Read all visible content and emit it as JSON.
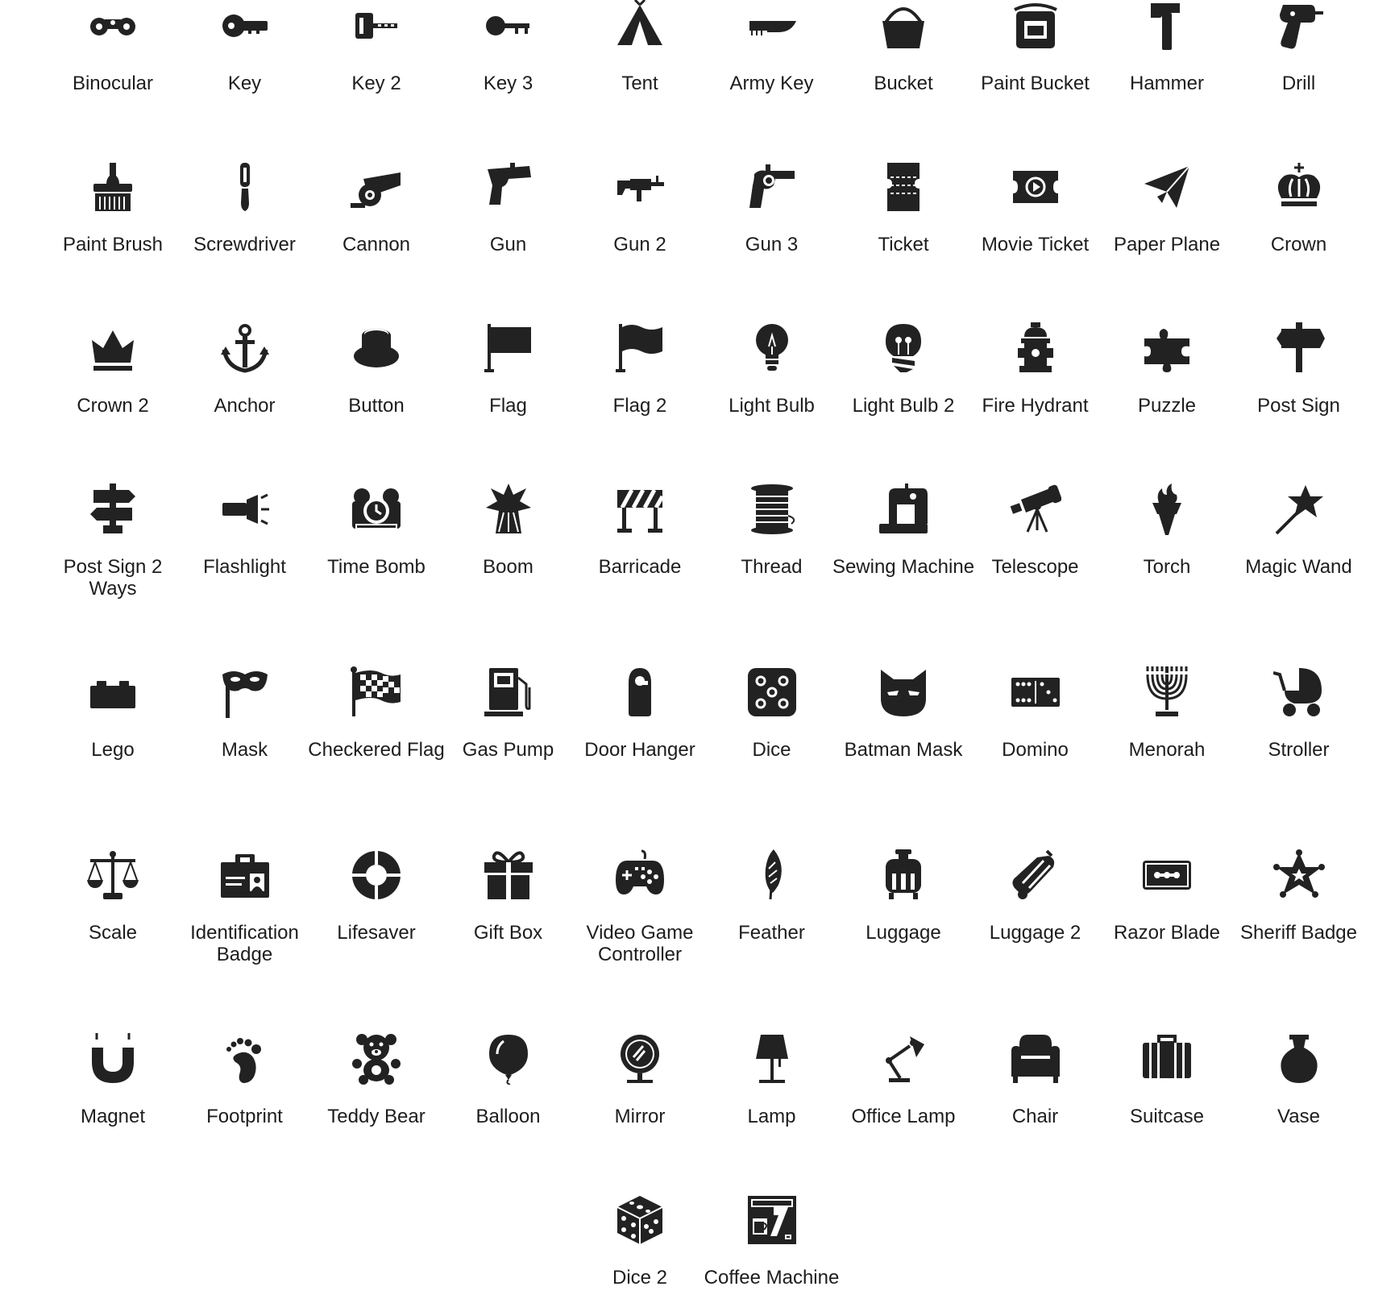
{
  "ink": "#222222",
  "icons": [
    [
      {
        "label": "Binocular",
        "icon": "binocular-icon"
      },
      {
        "label": "Key",
        "icon": "key-icon"
      },
      {
        "label": "Key 2",
        "icon": "key-2-icon"
      },
      {
        "label": "Key 3",
        "icon": "key-3-icon"
      },
      {
        "label": "Tent",
        "icon": "tent-icon"
      },
      {
        "label": "Army Key",
        "icon": "army-key-icon"
      },
      {
        "label": "Bucket",
        "icon": "bucket-icon"
      },
      {
        "label": "Paint Bucket",
        "icon": "paint-bucket-icon"
      },
      {
        "label": "Hammer",
        "icon": "hammer-icon"
      },
      {
        "label": "Drill",
        "icon": "drill-icon"
      }
    ],
    [
      {
        "label": "Paint Brush",
        "icon": "paint-brush-icon"
      },
      {
        "label": "Screwdriver",
        "icon": "screwdriver-icon"
      },
      {
        "label": "Cannon",
        "icon": "cannon-icon"
      },
      {
        "label": "Gun",
        "icon": "gun-icon"
      },
      {
        "label": "Gun 2",
        "icon": "gun-2-icon"
      },
      {
        "label": "Gun 3",
        "icon": "gun-3-icon"
      },
      {
        "label": "Ticket",
        "icon": "ticket-icon"
      },
      {
        "label": "Movie Ticket",
        "icon": "movie-ticket-icon"
      },
      {
        "label": "Paper Plane",
        "icon": "paper-plane-icon"
      },
      {
        "label": "Crown",
        "icon": "crown-icon"
      }
    ],
    [
      {
        "label": "Crown 2",
        "icon": "crown-2-icon"
      },
      {
        "label": "Anchor",
        "icon": "anchor-icon"
      },
      {
        "label": "Button",
        "icon": "button-icon"
      },
      {
        "label": "Flag",
        "icon": "flag-icon"
      },
      {
        "label": "Flag 2",
        "icon": "flag-2-icon"
      },
      {
        "label": "Light Bulb",
        "icon": "light-bulb-icon"
      },
      {
        "label": "Light Bulb 2",
        "icon": "light-bulb-2-icon"
      },
      {
        "label": "Fire Hydrant",
        "icon": "fire-hydrant-icon"
      },
      {
        "label": "Puzzle",
        "icon": "puzzle-icon"
      },
      {
        "label": "Post Sign",
        "icon": "post-sign-icon"
      }
    ],
    [
      {
        "label": "Post Sign 2 Ways",
        "icon": "post-sign-2-ways-icon"
      },
      {
        "label": "Flashlight",
        "icon": "flashlight-icon"
      },
      {
        "label": "Time Bomb",
        "icon": "time-bomb-icon"
      },
      {
        "label": "Boom",
        "icon": "boom-icon"
      },
      {
        "label": "Barricade",
        "icon": "barricade-icon"
      },
      {
        "label": "Thread",
        "icon": "thread-icon"
      },
      {
        "label": "Sewing Machine",
        "icon": "sewing-machine-icon"
      },
      {
        "label": "Telescope",
        "icon": "telescope-icon"
      },
      {
        "label": "Torch",
        "icon": "torch-icon"
      },
      {
        "label": "Magic Wand",
        "icon": "magic-wand-icon"
      }
    ],
    [
      {
        "label": "Lego",
        "icon": "lego-icon"
      },
      {
        "label": "Mask",
        "icon": "mask-icon"
      },
      {
        "label": "Checkered Flag",
        "icon": "checkered-flag-icon"
      },
      {
        "label": "Gas Pump",
        "icon": "gas-pump-icon"
      },
      {
        "label": "Door Hanger",
        "icon": "door-hanger-icon"
      },
      {
        "label": "Dice",
        "icon": "dice-icon"
      },
      {
        "label": "Batman Mask",
        "icon": "batman-mask-icon"
      },
      {
        "label": "Domino",
        "icon": "domino-icon"
      },
      {
        "label": "Menorah",
        "icon": "menorah-icon"
      },
      {
        "label": "Stroller",
        "icon": "stroller-icon"
      }
    ],
    [
      {
        "label": "Scale",
        "icon": "scale-icon"
      },
      {
        "label": "Identification Badge",
        "icon": "identification-badge-icon"
      },
      {
        "label": "Lifesaver",
        "icon": "lifesaver-icon"
      },
      {
        "label": "Gift Box",
        "icon": "gift-box-icon"
      },
      {
        "label": "Video Game Controller",
        "icon": "video-game-controller-icon"
      },
      {
        "label": "Feather",
        "icon": "feather-icon"
      },
      {
        "label": "Luggage",
        "icon": "luggage-icon"
      },
      {
        "label": "Luggage 2",
        "icon": "luggage-2-icon"
      },
      {
        "label": "Razor Blade",
        "icon": "razor-blade-icon"
      },
      {
        "label": "Sheriff Badge",
        "icon": "sheriff-badge-icon"
      }
    ],
    [
      {
        "label": "Magnet",
        "icon": "magnet-icon"
      },
      {
        "label": "Footprint",
        "icon": "footprint-icon"
      },
      {
        "label": "Teddy Bear",
        "icon": "teddy-bear-icon"
      },
      {
        "label": "Balloon",
        "icon": "balloon-icon"
      },
      {
        "label": "Mirror",
        "icon": "mirror-icon"
      },
      {
        "label": "Lamp",
        "icon": "lamp-icon"
      },
      {
        "label": "Office Lamp",
        "icon": "office-lamp-icon"
      },
      {
        "label": "Chair",
        "icon": "chair-icon"
      },
      {
        "label": "Suitcase",
        "icon": "suitcase-icon"
      },
      {
        "label": "Vase",
        "icon": "vase-icon"
      }
    ],
    [
      {
        "label": "Dice 2",
        "icon": "dice-2-icon"
      },
      {
        "label": "Coffee Machine",
        "icon": "coffee-machine-icon"
      }
    ]
  ]
}
